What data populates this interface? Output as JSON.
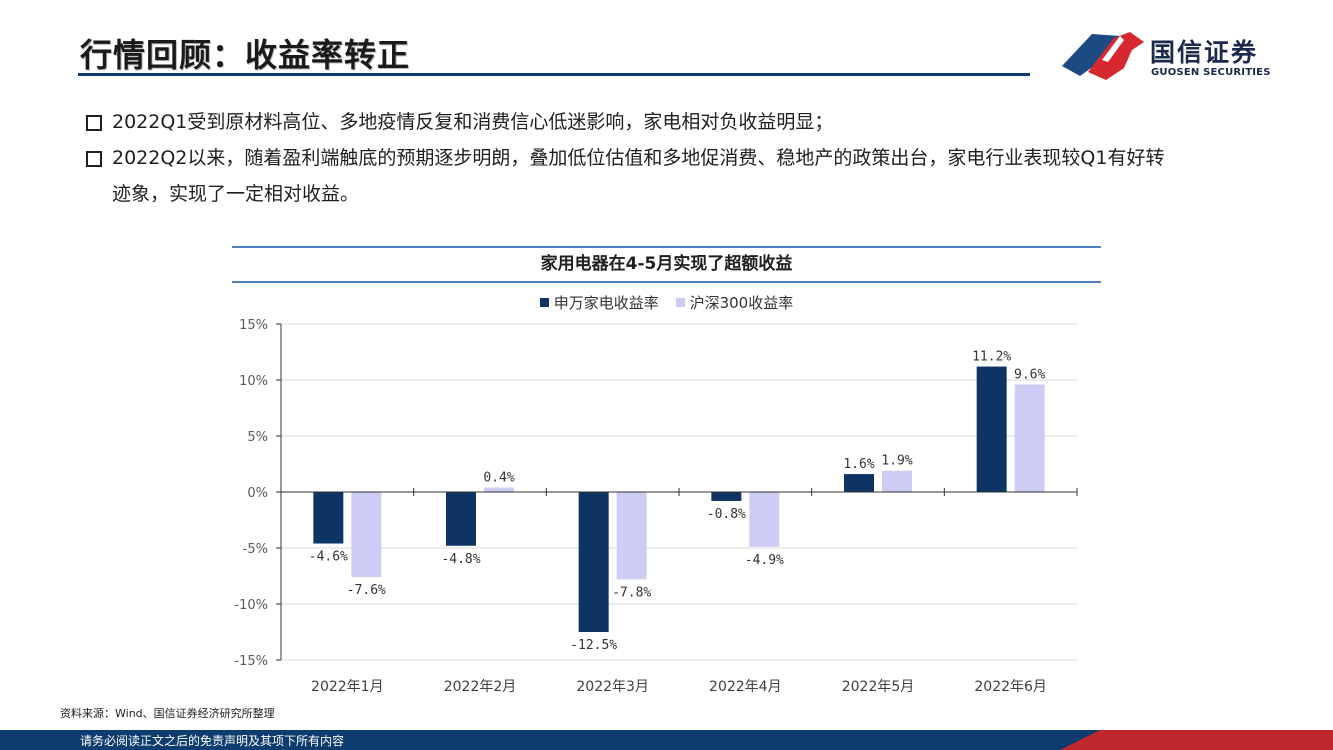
{
  "header": {
    "title": "行情回顾：收益率转正"
  },
  "logo": {
    "name_cn": "国信证券",
    "name_en": "GUOSEN SECURITIES",
    "colors": {
      "red": "#d7282f",
      "blue": "#1c4a82"
    }
  },
  "bullets": [
    {
      "text": "2022Q1受到原材料高位、多地疫情反复和消费信心低迷影响，家电相对负收益明显；"
    },
    {
      "text": "2022Q2以来，随着盈利端触底的预期逐步明朗，叠加低位估值和多地促消费、稳地产的政策出台，家电行业表现较Q1有好转迹象，实现了一定相对收益。"
    }
  ],
  "chart_data": {
    "type": "bar",
    "title": "家用电器在4-5月实现了超额收益",
    "categories": [
      "2022年1月",
      "2022年2月",
      "2022年3月",
      "2022年4月",
      "2022年5月",
      "2022年6月"
    ],
    "series": [
      {
        "name": "申万家电收益率",
        "color": "#0d3463",
        "values": [
          -4.6,
          -4.8,
          -12.5,
          -0.8,
          1.6,
          11.2
        ],
        "labels": [
          "-4.6%",
          "-4.8%",
          "-12.5%",
          "-0.8%",
          "1.6%",
          "11.2%"
        ]
      },
      {
        "name": "沪深300收益率",
        "color": "#ccccf5",
        "values": [
          -7.6,
          0.4,
          -7.8,
          -4.9,
          1.9,
          9.6
        ],
        "labels": [
          "-7.6%",
          "0.4%",
          "-7.8%",
          "-4.9%",
          "1.9%",
          "9.6%"
        ]
      }
    ],
    "ylim": [
      -15,
      15
    ],
    "yticks": [
      15,
      10,
      5,
      0,
      -5,
      -10,
      -15
    ],
    "ytick_labels": [
      "15%",
      "10%",
      "5%",
      "0%",
      "-5%",
      "-10%",
      "-15%"
    ],
    "grid": true,
    "legend": "top-center"
  },
  "source": "资料来源：Wind、国信证券经济研究所整理",
  "footer": {
    "text": "请务必阅读正文之后的免责声明及其项下所有内容",
    "colors": {
      "blue": "#0d3c6e",
      "red": "#c0282e"
    }
  }
}
